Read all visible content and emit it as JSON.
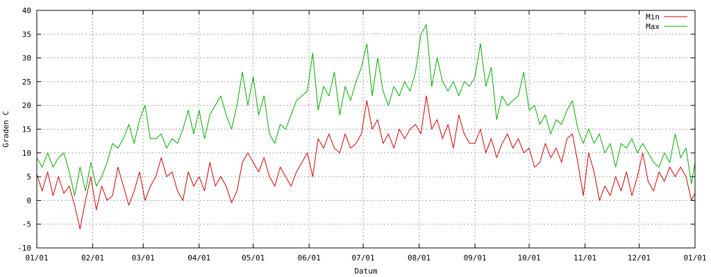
{
  "chart_data": {
    "type": "line",
    "xlabel": "Datum",
    "ylabel": "Graden C",
    "ylim": [
      -10,
      40
    ],
    "yticks": [
      -10,
      -5,
      0,
      5,
      10,
      15,
      20,
      25,
      30,
      35,
      40
    ],
    "xlim_days": [
      0,
      365
    ],
    "xticks": [
      {
        "day": 0,
        "label": "01/01"
      },
      {
        "day": 31,
        "label": "02/01"
      },
      {
        "day": 59,
        "label": "03/01"
      },
      {
        "day": 90,
        "label": "04/01"
      },
      {
        "day": 120,
        "label": "05/01"
      },
      {
        "day": 151,
        "label": "06/01"
      },
      {
        "day": 181,
        "label": "07/01"
      },
      {
        "day": 212,
        "label": "08/01"
      },
      {
        "day": 243,
        "label": "09/01"
      },
      {
        "day": 273,
        "label": "10/01"
      },
      {
        "day": 304,
        "label": "11/01"
      },
      {
        "day": 334,
        "label": "12/01"
      },
      {
        "day": 365,
        "label": "01/01"
      }
    ],
    "grid": true,
    "legend_position": "top-right",
    "series": [
      {
        "name": "Min",
        "color": "#cc0000",
        "points": [
          [
            0,
            5.5
          ],
          [
            3,
            2
          ],
          [
            6,
            6
          ],
          [
            9,
            1
          ],
          [
            12,
            5
          ],
          [
            15,
            1.5
          ],
          [
            18,
            3
          ],
          [
            21,
            -1
          ],
          [
            24,
            -6
          ],
          [
            27,
            0
          ],
          [
            30,
            5
          ],
          [
            33,
            -2
          ],
          [
            36,
            3
          ],
          [
            39,
            0
          ],
          [
            42,
            1
          ],
          [
            45,
            7
          ],
          [
            48,
            3
          ],
          [
            51,
            -1
          ],
          [
            54,
            2
          ],
          [
            57,
            6
          ],
          [
            60,
            0
          ],
          [
            63,
            3
          ],
          [
            66,
            5
          ],
          [
            69,
            9
          ],
          [
            72,
            5
          ],
          [
            75,
            6
          ],
          [
            78,
            2
          ],
          [
            81,
            0
          ],
          [
            84,
            6
          ],
          [
            87,
            3
          ],
          [
            90,
            5
          ],
          [
            93,
            2
          ],
          [
            96,
            8
          ],
          [
            99,
            3
          ],
          [
            102,
            5
          ],
          [
            105,
            3
          ],
          [
            108,
            -0.5
          ],
          [
            111,
            2
          ],
          [
            114,
            8
          ],
          [
            117,
            10
          ],
          [
            120,
            8
          ],
          [
            123,
            6
          ],
          [
            126,
            9
          ],
          [
            129,
            5
          ],
          [
            132,
            3
          ],
          [
            135,
            7
          ],
          [
            138,
            5
          ],
          [
            141,
            3
          ],
          [
            144,
            6
          ],
          [
            147,
            8
          ],
          [
            150,
            10
          ],
          [
            153,
            5
          ],
          [
            156,
            13
          ],
          [
            159,
            11
          ],
          [
            162,
            14
          ],
          [
            165,
            11
          ],
          [
            168,
            10
          ],
          [
            171,
            14
          ],
          [
            174,
            11
          ],
          [
            177,
            12
          ],
          [
            180,
            14
          ],
          [
            183,
            21
          ],
          [
            186,
            15
          ],
          [
            189,
            17
          ],
          [
            192,
            12
          ],
          [
            195,
            14
          ],
          [
            198,
            11
          ],
          [
            201,
            15
          ],
          [
            204,
            13
          ],
          [
            207,
            15
          ],
          [
            210,
            16
          ],
          [
            213,
            14
          ],
          [
            216,
            22
          ],
          [
            219,
            15
          ],
          [
            222,
            17
          ],
          [
            225,
            13
          ],
          [
            228,
            16
          ],
          [
            231,
            11
          ],
          [
            234,
            18
          ],
          [
            237,
            14
          ],
          [
            240,
            12
          ],
          [
            243,
            12
          ],
          [
            246,
            15
          ],
          [
            249,
            10
          ],
          [
            252,
            13
          ],
          [
            255,
            9
          ],
          [
            258,
            12
          ],
          [
            261,
            14
          ],
          [
            264,
            11
          ],
          [
            267,
            13
          ],
          [
            270,
            10
          ],
          [
            273,
            11
          ],
          [
            276,
            7
          ],
          [
            279,
            8
          ],
          [
            282,
            12
          ],
          [
            285,
            9
          ],
          [
            288,
            11
          ],
          [
            291,
            8
          ],
          [
            294,
            13
          ],
          [
            297,
            14
          ],
          [
            300,
            8
          ],
          [
            303,
            1
          ],
          [
            306,
            10
          ],
          [
            309,
            6
          ],
          [
            312,
            0
          ],
          [
            315,
            3
          ],
          [
            318,
            1
          ],
          [
            321,
            5
          ],
          [
            324,
            2
          ],
          [
            327,
            6
          ],
          [
            330,
            1
          ],
          [
            333,
            5
          ],
          [
            336,
            10
          ],
          [
            339,
            4
          ],
          [
            342,
            2
          ],
          [
            345,
            6
          ],
          [
            348,
            4
          ],
          [
            351,
            7
          ],
          [
            354,
            5
          ],
          [
            357,
            7
          ],
          [
            360,
            5
          ],
          [
            363,
            0
          ],
          [
            365,
            1.5
          ]
        ]
      },
      {
        "name": "Max",
        "color": "#00aa00",
        "points": [
          [
            0,
            9
          ],
          [
            3,
            7
          ],
          [
            6,
            10
          ],
          [
            9,
            7
          ],
          [
            12,
            9
          ],
          [
            15,
            10
          ],
          [
            18,
            6
          ],
          [
            21,
            1
          ],
          [
            24,
            7
          ],
          [
            27,
            2
          ],
          [
            30,
            8
          ],
          [
            33,
            3
          ],
          [
            36,
            5
          ],
          [
            39,
            8
          ],
          [
            42,
            12
          ],
          [
            45,
            11
          ],
          [
            48,
            13
          ],
          [
            51,
            16
          ],
          [
            54,
            12
          ],
          [
            57,
            17
          ],
          [
            60,
            20
          ],
          [
            63,
            13
          ],
          [
            66,
            13
          ],
          [
            69,
            14
          ],
          [
            72,
            11
          ],
          [
            75,
            13
          ],
          [
            78,
            12
          ],
          [
            81,
            15
          ],
          [
            84,
            19
          ],
          [
            87,
            14
          ],
          [
            90,
            19
          ],
          [
            93,
            13
          ],
          [
            96,
            18
          ],
          [
            99,
            20
          ],
          [
            102,
            22
          ],
          [
            105,
            18
          ],
          [
            108,
            15
          ],
          [
            111,
            20
          ],
          [
            114,
            27
          ],
          [
            117,
            20
          ],
          [
            120,
            26
          ],
          [
            123,
            18
          ],
          [
            126,
            22
          ],
          [
            129,
            14
          ],
          [
            132,
            12
          ],
          [
            135,
            16
          ],
          [
            138,
            15
          ],
          [
            141,
            18
          ],
          [
            144,
            21
          ],
          [
            147,
            22
          ],
          [
            150,
            23
          ],
          [
            153,
            31
          ],
          [
            156,
            19
          ],
          [
            159,
            24
          ],
          [
            162,
            22
          ],
          [
            165,
            27
          ],
          [
            168,
            18
          ],
          [
            171,
            24
          ],
          [
            174,
            21
          ],
          [
            177,
            25
          ],
          [
            180,
            28
          ],
          [
            183,
            33
          ],
          [
            186,
            22
          ],
          [
            189,
            30
          ],
          [
            192,
            23
          ],
          [
            195,
            20
          ],
          [
            198,
            24
          ],
          [
            201,
            22
          ],
          [
            204,
            25
          ],
          [
            207,
            23
          ],
          [
            210,
            27
          ],
          [
            213,
            35
          ],
          [
            216,
            37
          ],
          [
            219,
            24
          ],
          [
            222,
            30
          ],
          [
            225,
            25
          ],
          [
            228,
            23
          ],
          [
            231,
            25
          ],
          [
            234,
            22
          ],
          [
            237,
            25
          ],
          [
            240,
            24
          ],
          [
            243,
            26
          ],
          [
            246,
            33
          ],
          [
            249,
            24
          ],
          [
            252,
            28
          ],
          [
            255,
            17
          ],
          [
            258,
            22
          ],
          [
            261,
            20
          ],
          [
            264,
            21
          ],
          [
            267,
            22
          ],
          [
            270,
            27
          ],
          [
            273,
            19
          ],
          [
            276,
            20
          ],
          [
            279,
            16
          ],
          [
            282,
            18
          ],
          [
            285,
            14
          ],
          [
            288,
            17
          ],
          [
            291,
            16
          ],
          [
            294,
            19
          ],
          [
            297,
            21
          ],
          [
            300,
            15
          ],
          [
            303,
            12
          ],
          [
            306,
            15
          ],
          [
            309,
            12
          ],
          [
            312,
            14
          ],
          [
            315,
            10
          ],
          [
            318,
            12
          ],
          [
            321,
            7
          ],
          [
            324,
            12
          ],
          [
            327,
            11
          ],
          [
            330,
            13
          ],
          [
            333,
            10
          ],
          [
            336,
            12
          ],
          [
            339,
            10
          ],
          [
            342,
            8
          ],
          [
            345,
            7
          ],
          [
            348,
            10
          ],
          [
            351,
            8
          ],
          [
            354,
            14
          ],
          [
            357,
            9
          ],
          [
            360,
            11
          ],
          [
            363,
            3.5
          ],
          [
            365,
            8
          ]
        ]
      }
    ]
  }
}
